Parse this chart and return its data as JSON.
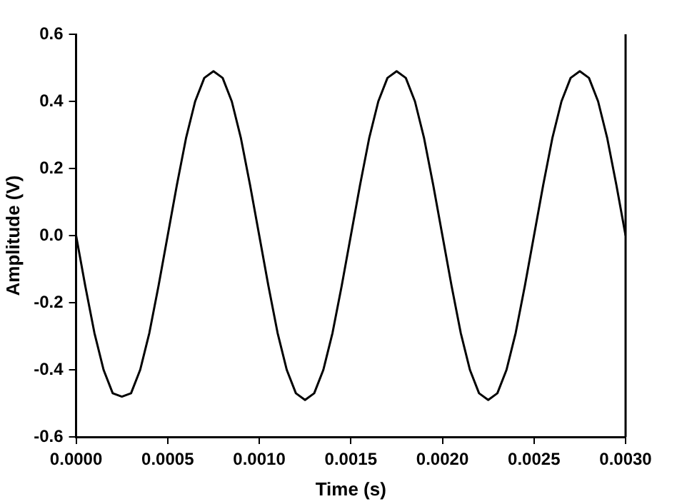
{
  "chart_data": {
    "type": "line",
    "xlabel": "Time (s)",
    "ylabel": "Amplitude (V)",
    "x": [
      0,
      5e-05,
      0.0001,
      0.00015,
      0.0002,
      0.00025,
      0.0003,
      0.00035,
      0.0004,
      0.00045,
      0.0005,
      0.00055,
      0.0006,
      0.00065,
      0.0007,
      0.00075,
      0.0008,
      0.00085,
      0.0009,
      0.00095,
      0.001,
      0.00105,
      0.0011,
      0.00115,
      0.0012,
      0.00125,
      0.0013,
      0.00135,
      0.0014,
      0.00145,
      0.0015,
      0.00155,
      0.0016,
      0.00165,
      0.0017,
      0.00175,
      0.0018,
      0.00185,
      0.0019,
      0.00195,
      0.002,
      0.00205,
      0.0021,
      0.00215,
      0.0022,
      0.00225,
      0.0023,
      0.00235,
      0.0024,
      0.00245,
      0.0025,
      0.00255,
      0.0026,
      0.00265,
      0.0027,
      0.00275,
      0.0028,
      0.00285,
      0.0029,
      0.00295,
      0.003
    ],
    "series": [
      {
        "color": "#000000",
        "values": [
          0,
          -0.15,
          -0.29,
          -0.4,
          -0.47,
          -0.48,
          -0.47,
          -0.4,
          -0.29,
          -0.15,
          0,
          0.15,
          0.29,
          0.4,
          0.47,
          0.49,
          0.47,
          0.4,
          0.29,
          0.15,
          0,
          -0.15,
          -0.29,
          -0.4,
          -0.47,
          -0.49,
          -0.47,
          -0.4,
          -0.29,
          -0.15,
          0,
          0.15,
          0.29,
          0.4,
          0.47,
          0.49,
          0.47,
          0.4,
          0.29,
          0.15,
          0,
          -0.15,
          -0.29,
          -0.4,
          -0.47,
          -0.49,
          -0.47,
          -0.4,
          -0.29,
          -0.15,
          0,
          0.15,
          0.29,
          0.4,
          0.47,
          0.49,
          0.47,
          0.4,
          0.29,
          0.15,
          0
        ]
      }
    ],
    "xlim": [
      0,
      0.003
    ],
    "xticks": [
      {
        "value": 0,
        "label": "0.0000"
      },
      {
        "value": 0.0005,
        "label": "0.0005"
      },
      {
        "value": 0.001,
        "label": "0.0010"
      },
      {
        "value": 0.0015,
        "label": "0.0015"
      },
      {
        "value": 0.002,
        "label": "0.0020"
      },
      {
        "value": 0.0025,
        "label": "0.0025"
      },
      {
        "value": 0.003,
        "label": "0.0030"
      }
    ],
    "ylim": [
      -0.6,
      0.6
    ],
    "yticks": [
      -0.6,
      -0.4,
      -0.2,
      {
        "value": 0,
        "label": "0.0"
      },
      0.2,
      0.4,
      0.6
    ],
    "grid": false,
    "legend": false,
    "marker": "none",
    "line_style": "solid"
  }
}
